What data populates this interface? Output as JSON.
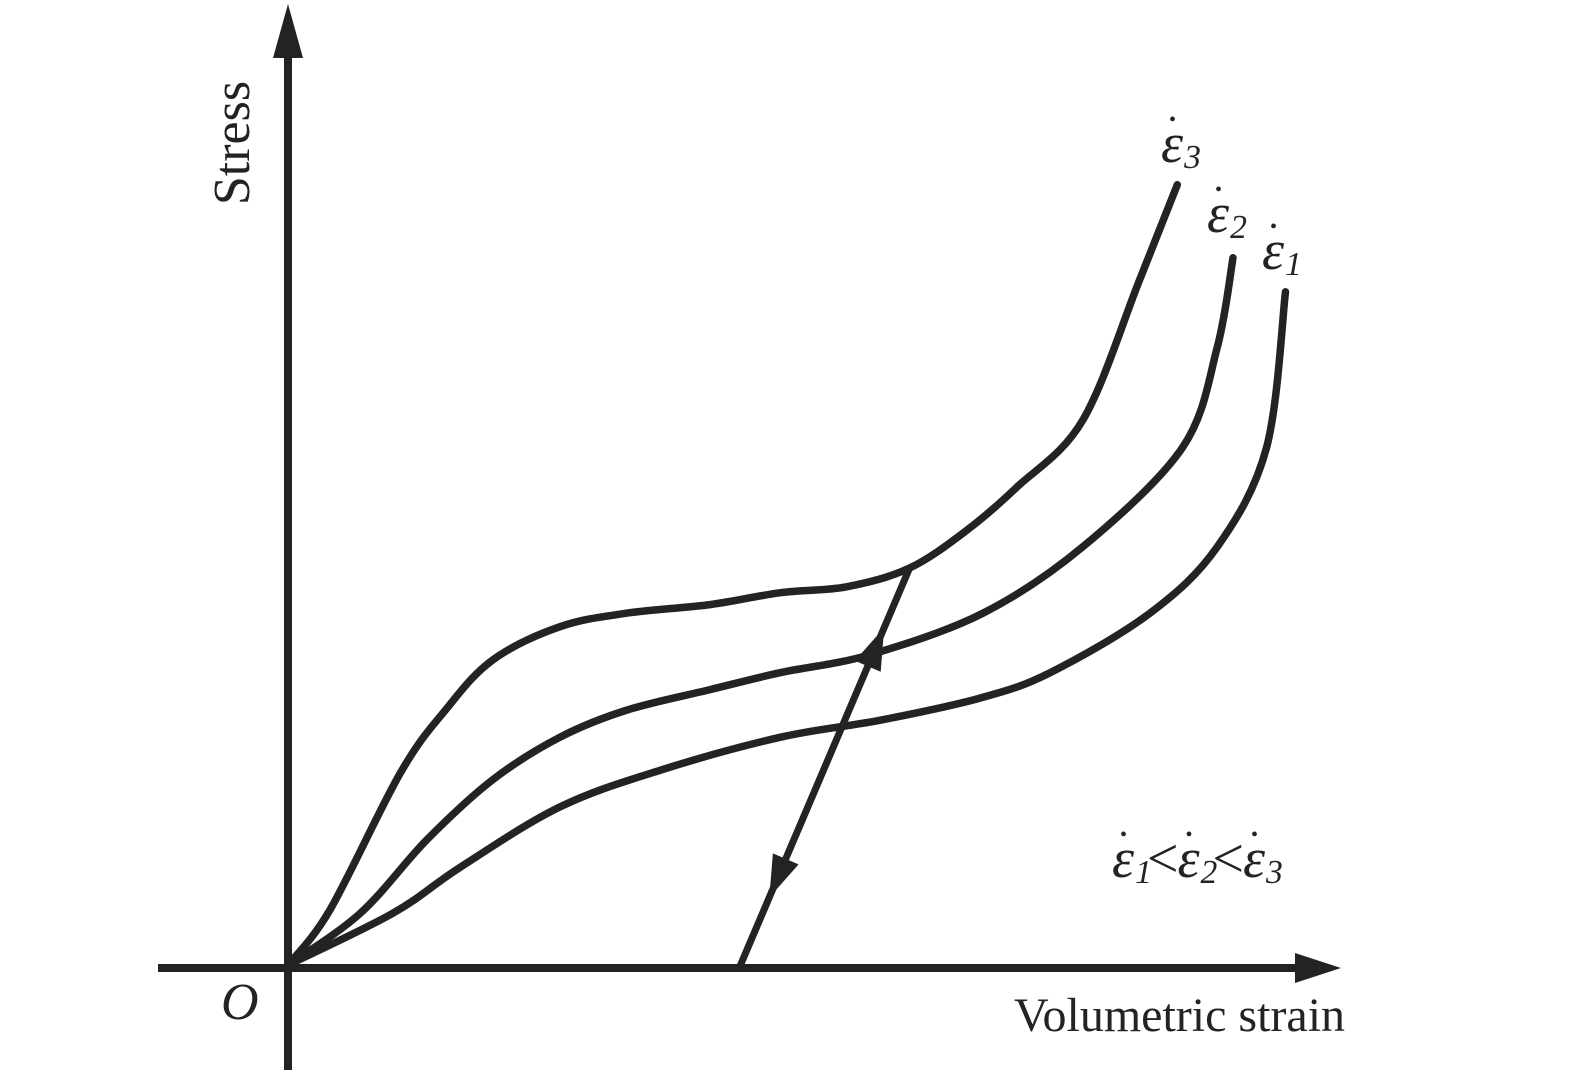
{
  "figure": {
    "background": "#ffffff",
    "ink_color": "#232323"
  },
  "axes": {
    "y_label": "Stress",
    "x_label": "Volumetric strain",
    "origin_label": "O"
  },
  "curves": [
    {
      "id": "eps3",
      "label": {
        "base": "ε",
        "dot": "•",
        "sub": "3"
      }
    },
    {
      "id": "eps2",
      "label": {
        "base": "ε",
        "dot": "•",
        "sub": "2"
      }
    },
    {
      "id": "eps1",
      "label": {
        "base": "ε",
        "dot": "•",
        "sub": "1"
      }
    }
  ],
  "inequality": {
    "terms": [
      {
        "base": "ε",
        "dot": "•",
        "sub": "1"
      },
      {
        "base": "ε",
        "dot": "•",
        "sub": "2"
      },
      {
        "base": "ε",
        "dot": "•",
        "sub": "3"
      }
    ],
    "operator": "<"
  },
  "chart_data": {
    "type": "line",
    "title": "",
    "xlabel": "Volumetric strain",
    "ylabel": "Stress",
    "origin_label": "O",
    "axes_numeric": false,
    "grid": false,
    "legend_position": "curve-end labels",
    "x_range_normalized": [
      0,
      1
    ],
    "y_range_normalized": [
      0,
      1
    ],
    "series": [
      {
        "id": "eps3",
        "name": "ε̇3",
        "x": [
          0,
          0.04,
          0.107,
          0.15,
          0.195,
          0.259,
          0.323,
          0.402,
          0.469,
          0.532,
          0.592,
          0.647,
          0.694,
          0.757,
          0.811,
          0.847
        ],
        "y": [
          0,
          0.065,
          0.226,
          0.3,
          0.359,
          0.398,
          0.414,
          0.424,
          0.438,
          0.445,
          0.467,
          0.512,
          0.562,
          0.641,
          0.806,
          0.918
        ]
      },
      {
        "id": "eps2",
        "name": "ε̇2",
        "x": [
          0,
          0.069,
          0.132,
          0.195,
          0.259,
          0.323,
          0.402,
          0.469,
          0.554,
          0.662,
          0.757,
          0.852,
          0.885,
          0.9
        ],
        "y": [
          0,
          0.061,
          0.147,
          0.218,
          0.268,
          0.3,
          0.324,
          0.344,
          0.365,
          0.414,
          0.492,
          0.609,
          0.727,
          0.832
        ]
      },
      {
        "id": "eps1",
        "name": "ε̇1",
        "x": [
          0,
          0.1,
          0.164,
          0.259,
          0.354,
          0.469,
          0.564,
          0.659,
          0.726,
          0.821,
          0.885,
          0.932,
          0.95
        ],
        "y": [
          0,
          0.061,
          0.115,
          0.186,
          0.229,
          0.268,
          0.288,
          0.314,
          0.344,
          0.414,
          0.492,
          0.609,
          0.792
        ]
      }
    ],
    "annotations": [
      {
        "id": "double_arrow",
        "type": "double_arrow",
        "from": [
          0.431,
          0.0
        ],
        "to": [
          0.592,
          0.467
        ]
      },
      {
        "id": "rate_order",
        "type": "text",
        "text": "ε̇1 < ε̇2 < ε̇3"
      }
    ]
  }
}
